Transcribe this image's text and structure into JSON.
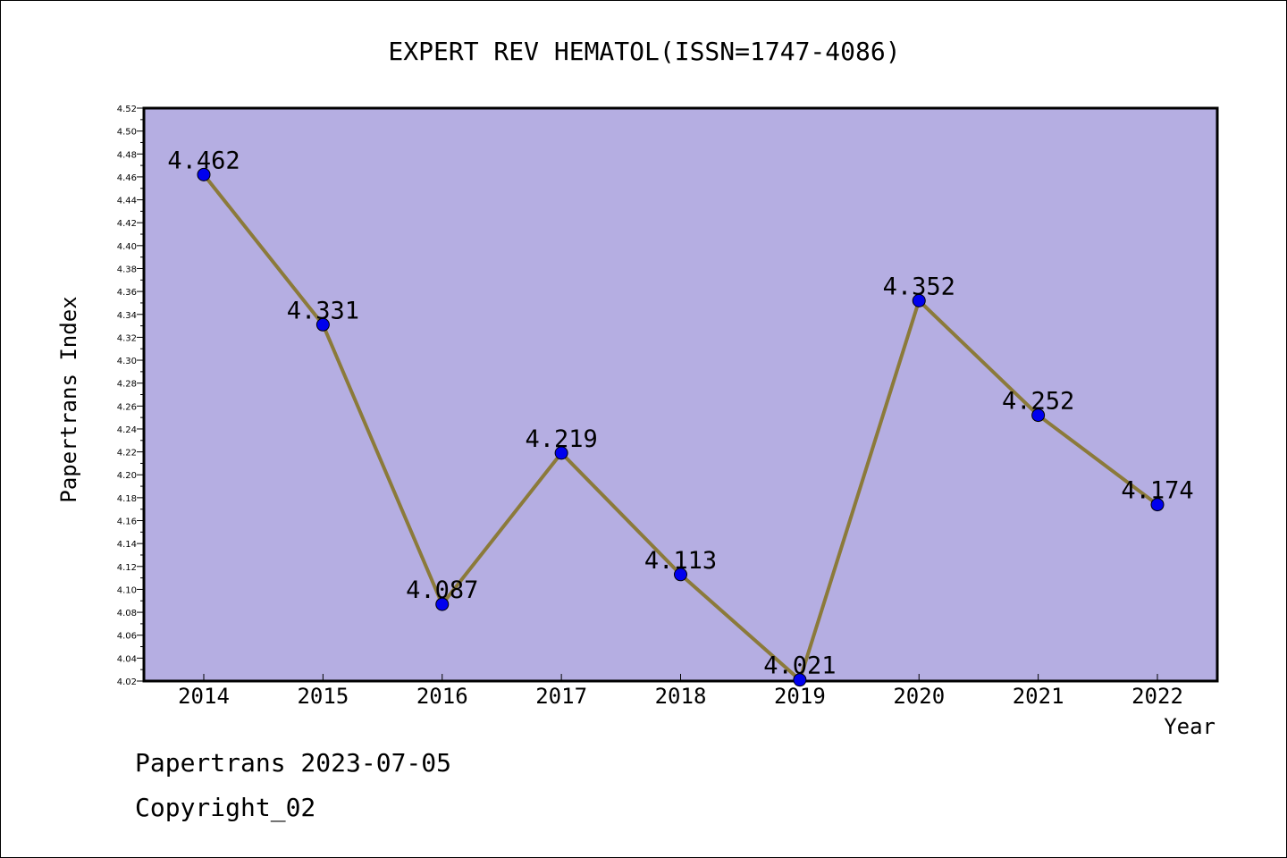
{
  "chart_data": {
    "type": "line",
    "title": "EXPERT REV HEMATOL(ISSN=1747-4086)",
    "xlabel": "Year",
    "ylabel": "Papertrans Index",
    "categories": [
      "2014",
      "2015",
      "2016",
      "2017",
      "2018",
      "2019",
      "2020",
      "2021",
      "2022"
    ],
    "values": [
      4.462,
      4.331,
      4.087,
      4.219,
      4.113,
      4.021,
      4.352,
      4.252,
      4.174
    ],
    "data_labels": [
      "4.462",
      "4.331",
      "4.087",
      "4.219",
      "4.113",
      "4.021",
      "4.352",
      "4.252",
      "4.174"
    ],
    "ylim": [
      4.02,
      4.52
    ],
    "yticks": [
      "4.02",
      "4.04",
      "4.06",
      "4.08",
      "4.10",
      "4.12",
      "4.14",
      "4.16",
      "4.18",
      "4.20",
      "4.22",
      "4.24",
      "4.26",
      "4.28",
      "4.30",
      "4.32",
      "4.34",
      "4.36",
      "4.38",
      "4.40",
      "4.42",
      "4.44",
      "4.46",
      "4.48",
      "4.50",
      "4.52"
    ],
    "grid": false,
    "colors": {
      "plot_background": "#b5aee2",
      "line": "#8b7a3a",
      "marker": "#0000ee"
    }
  },
  "footer": {
    "date_line": "Papertrans 2023-07-05",
    "copyright": "Copyright_02"
  }
}
